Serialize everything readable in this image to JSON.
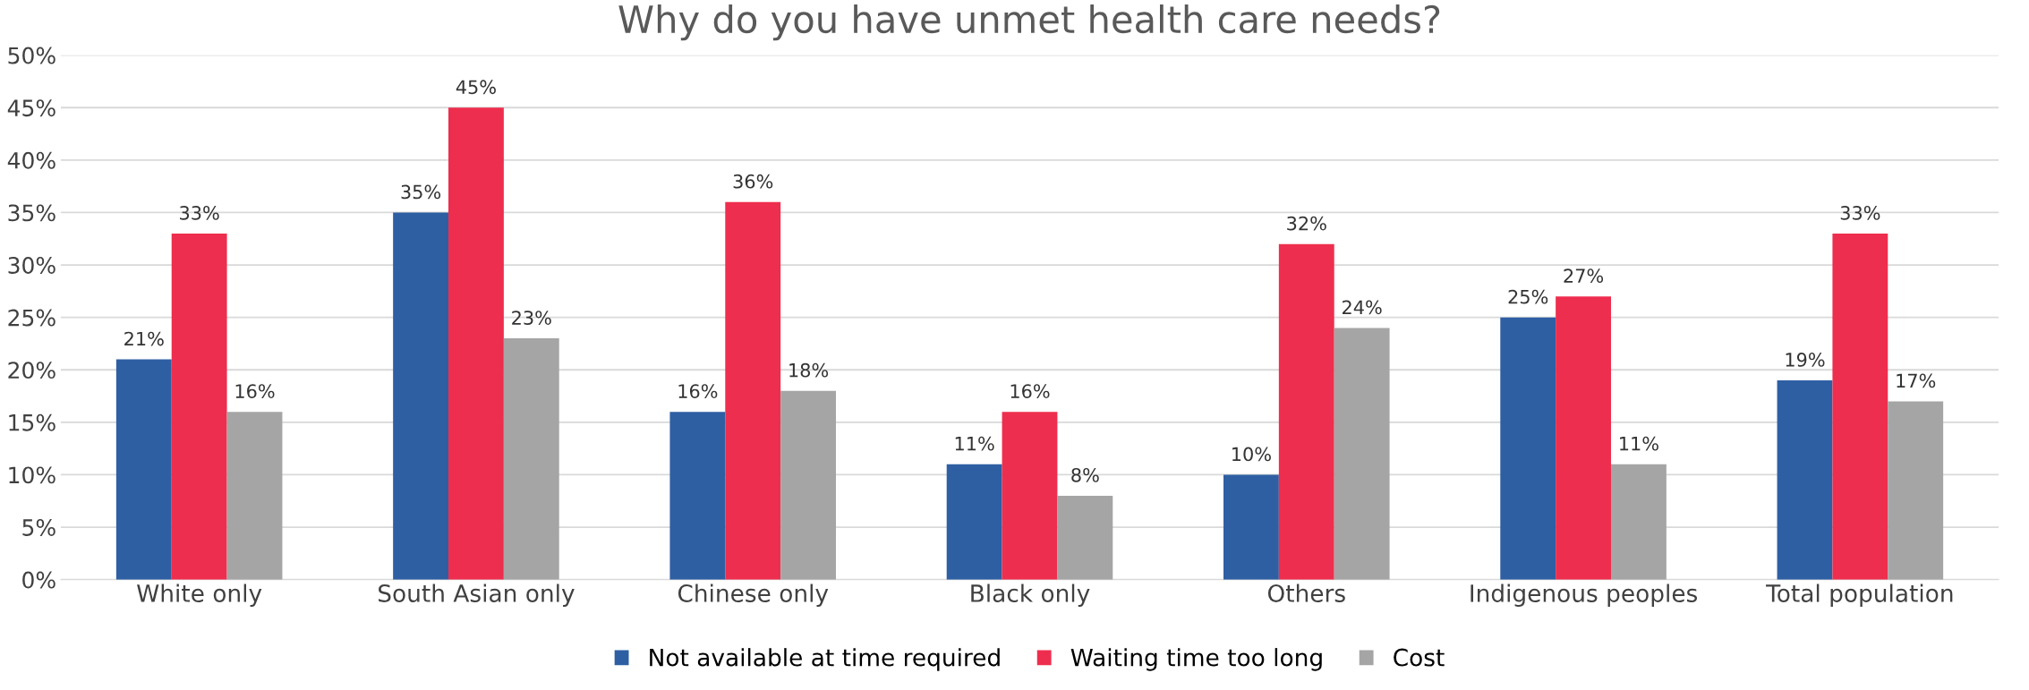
{
  "chart_data": {
    "type": "bar",
    "title": "Why do you have unmet health care needs?",
    "categories": [
      "White only",
      "South Asian only",
      "Chinese only",
      "Black only",
      "Others",
      "Indigenous peoples",
      "Total population"
    ],
    "series": [
      {
        "name": "Not available at time required",
        "color": "#2e5fa3",
        "values": [
          21,
          35,
          16,
          11,
          10,
          25,
          19
        ],
        "value_labels": [
          "21%",
          "35%",
          "16%",
          "11%",
          "10%",
          "25%",
          "19%"
        ]
      },
      {
        "name": "Waiting time too long",
        "color": "#ee2e4e",
        "values": [
          33,
          45,
          36,
          16,
          32,
          27,
          33
        ],
        "value_labels": [
          "33%",
          "45%",
          "36%",
          "16%",
          "32%",
          "27%",
          "33%"
        ]
      },
      {
        "name": "Cost",
        "color": "#a5a5a5",
        "values": [
          16,
          23,
          18,
          8,
          24,
          11,
          17
        ],
        "value_labels": [
          "16%",
          "23%",
          "18%",
          "8%",
          "24%",
          "11%",
          "17%"
        ]
      }
    ],
    "ylim": [
      0,
      50
    ],
    "yticks": [
      {
        "value": 0,
        "label": "0%"
      },
      {
        "value": 5,
        "label": "5%"
      },
      {
        "value": 10,
        "label": "10%"
      },
      {
        "value": 15,
        "label": "15%"
      },
      {
        "value": 20,
        "label": "20%"
      },
      {
        "value": 25,
        "label": "25%"
      },
      {
        "value": 30,
        "label": "30%"
      },
      {
        "value": 35,
        "label": "35%"
      },
      {
        "value": 40,
        "label": "40%"
      },
      {
        "value": 45,
        "label": "45%"
      },
      {
        "value": 50,
        "label": "50%"
      }
    ],
    "grid": "y",
    "legend": "bottom"
  }
}
